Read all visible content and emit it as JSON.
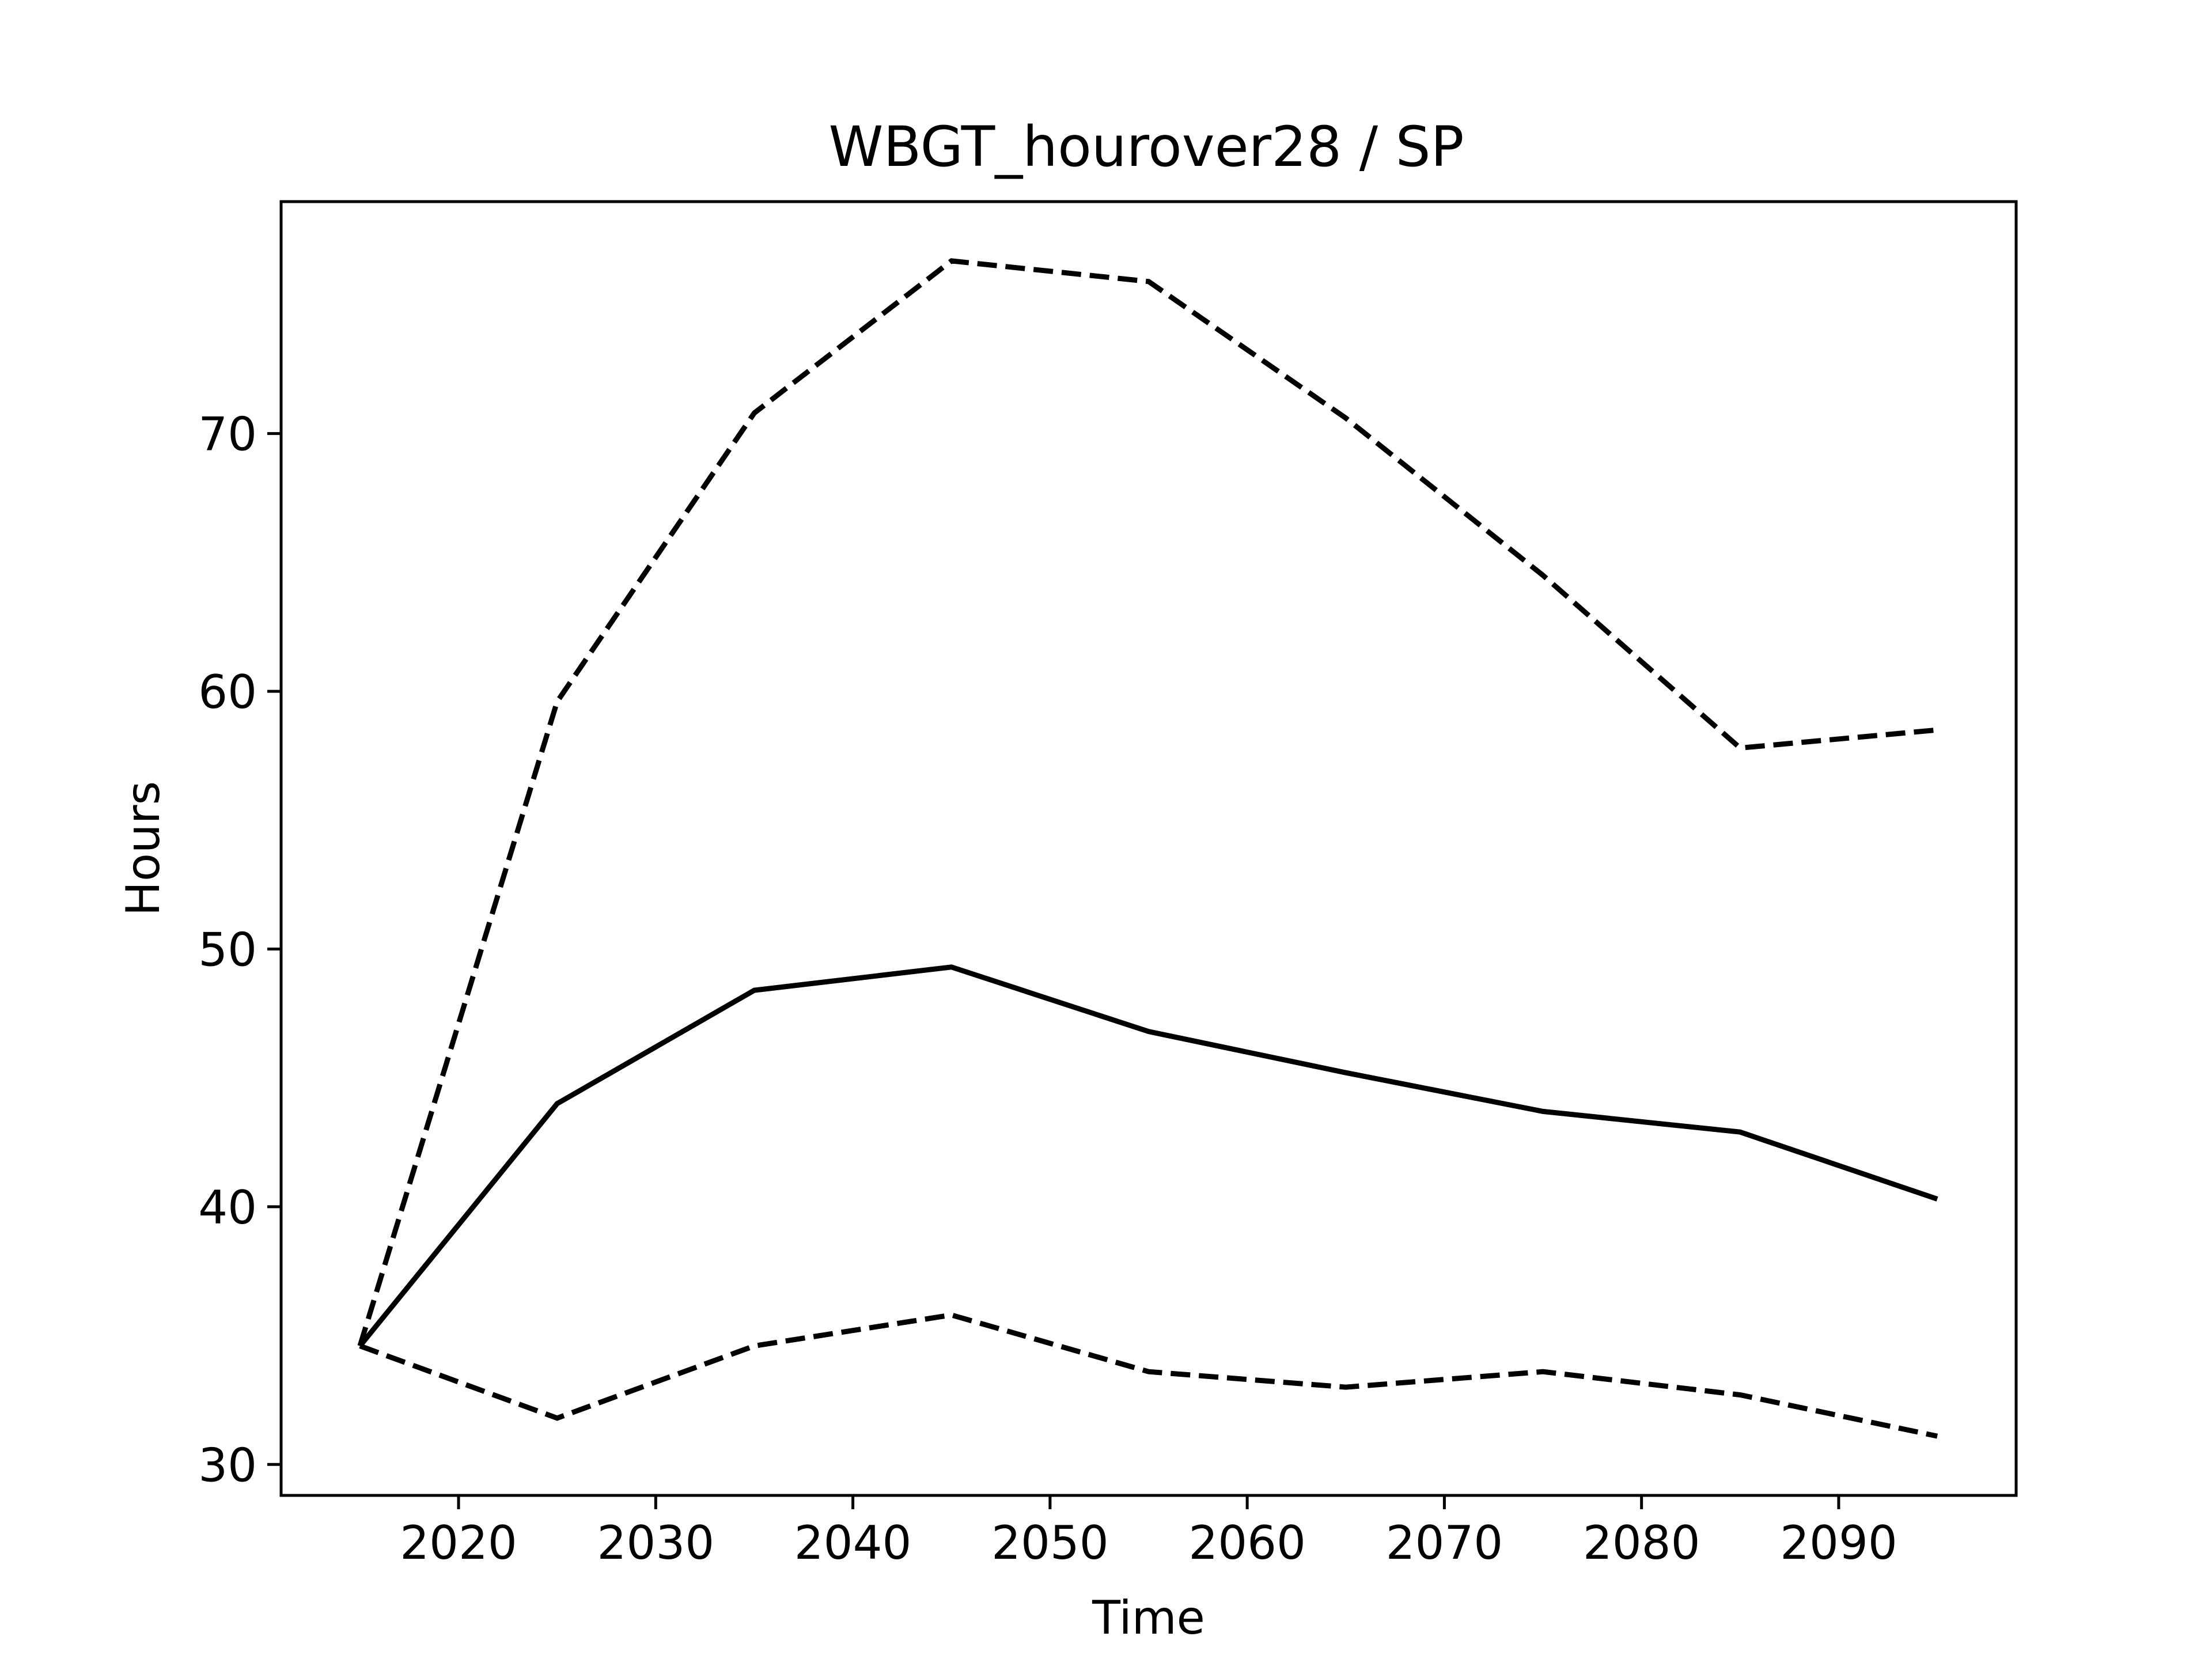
{
  "chart_data": {
    "type": "line",
    "title": "WBGT_hourover28 / SP",
    "xlabel": "Time",
    "ylabel": "Hours",
    "x": [
      2015,
      2025,
      2035,
      2045,
      2055,
      2065,
      2075,
      2085,
      2095
    ],
    "xlim": [
      2011,
      2099
    ],
    "ylim": [
      28.8,
      79
    ],
    "xticks": [
      2020,
      2030,
      2040,
      2050,
      2060,
      2070,
      2080,
      2090
    ],
    "yticks": [
      30,
      40,
      50,
      60,
      70
    ],
    "grid": false,
    "legend": false,
    "series": [
      {
        "style": "solid",
        "color": "#000000",
        "values": [
          34.6,
          44.0,
          48.4,
          49.3,
          46.8,
          45.2,
          43.7,
          42.9,
          40.3
        ]
      },
      {
        "style": "dashed",
        "color": "#000000",
        "values": [
          34.6,
          59.6,
          70.8,
          76.7,
          75.9,
          70.6,
          64.5,
          57.8,
          58.5
        ]
      },
      {
        "style": "dashed",
        "color": "#000000",
        "values": [
          34.6,
          31.8,
          34.6,
          35.8,
          33.6,
          33.0,
          33.6,
          32.7,
          31.1
        ]
      }
    ]
  }
}
